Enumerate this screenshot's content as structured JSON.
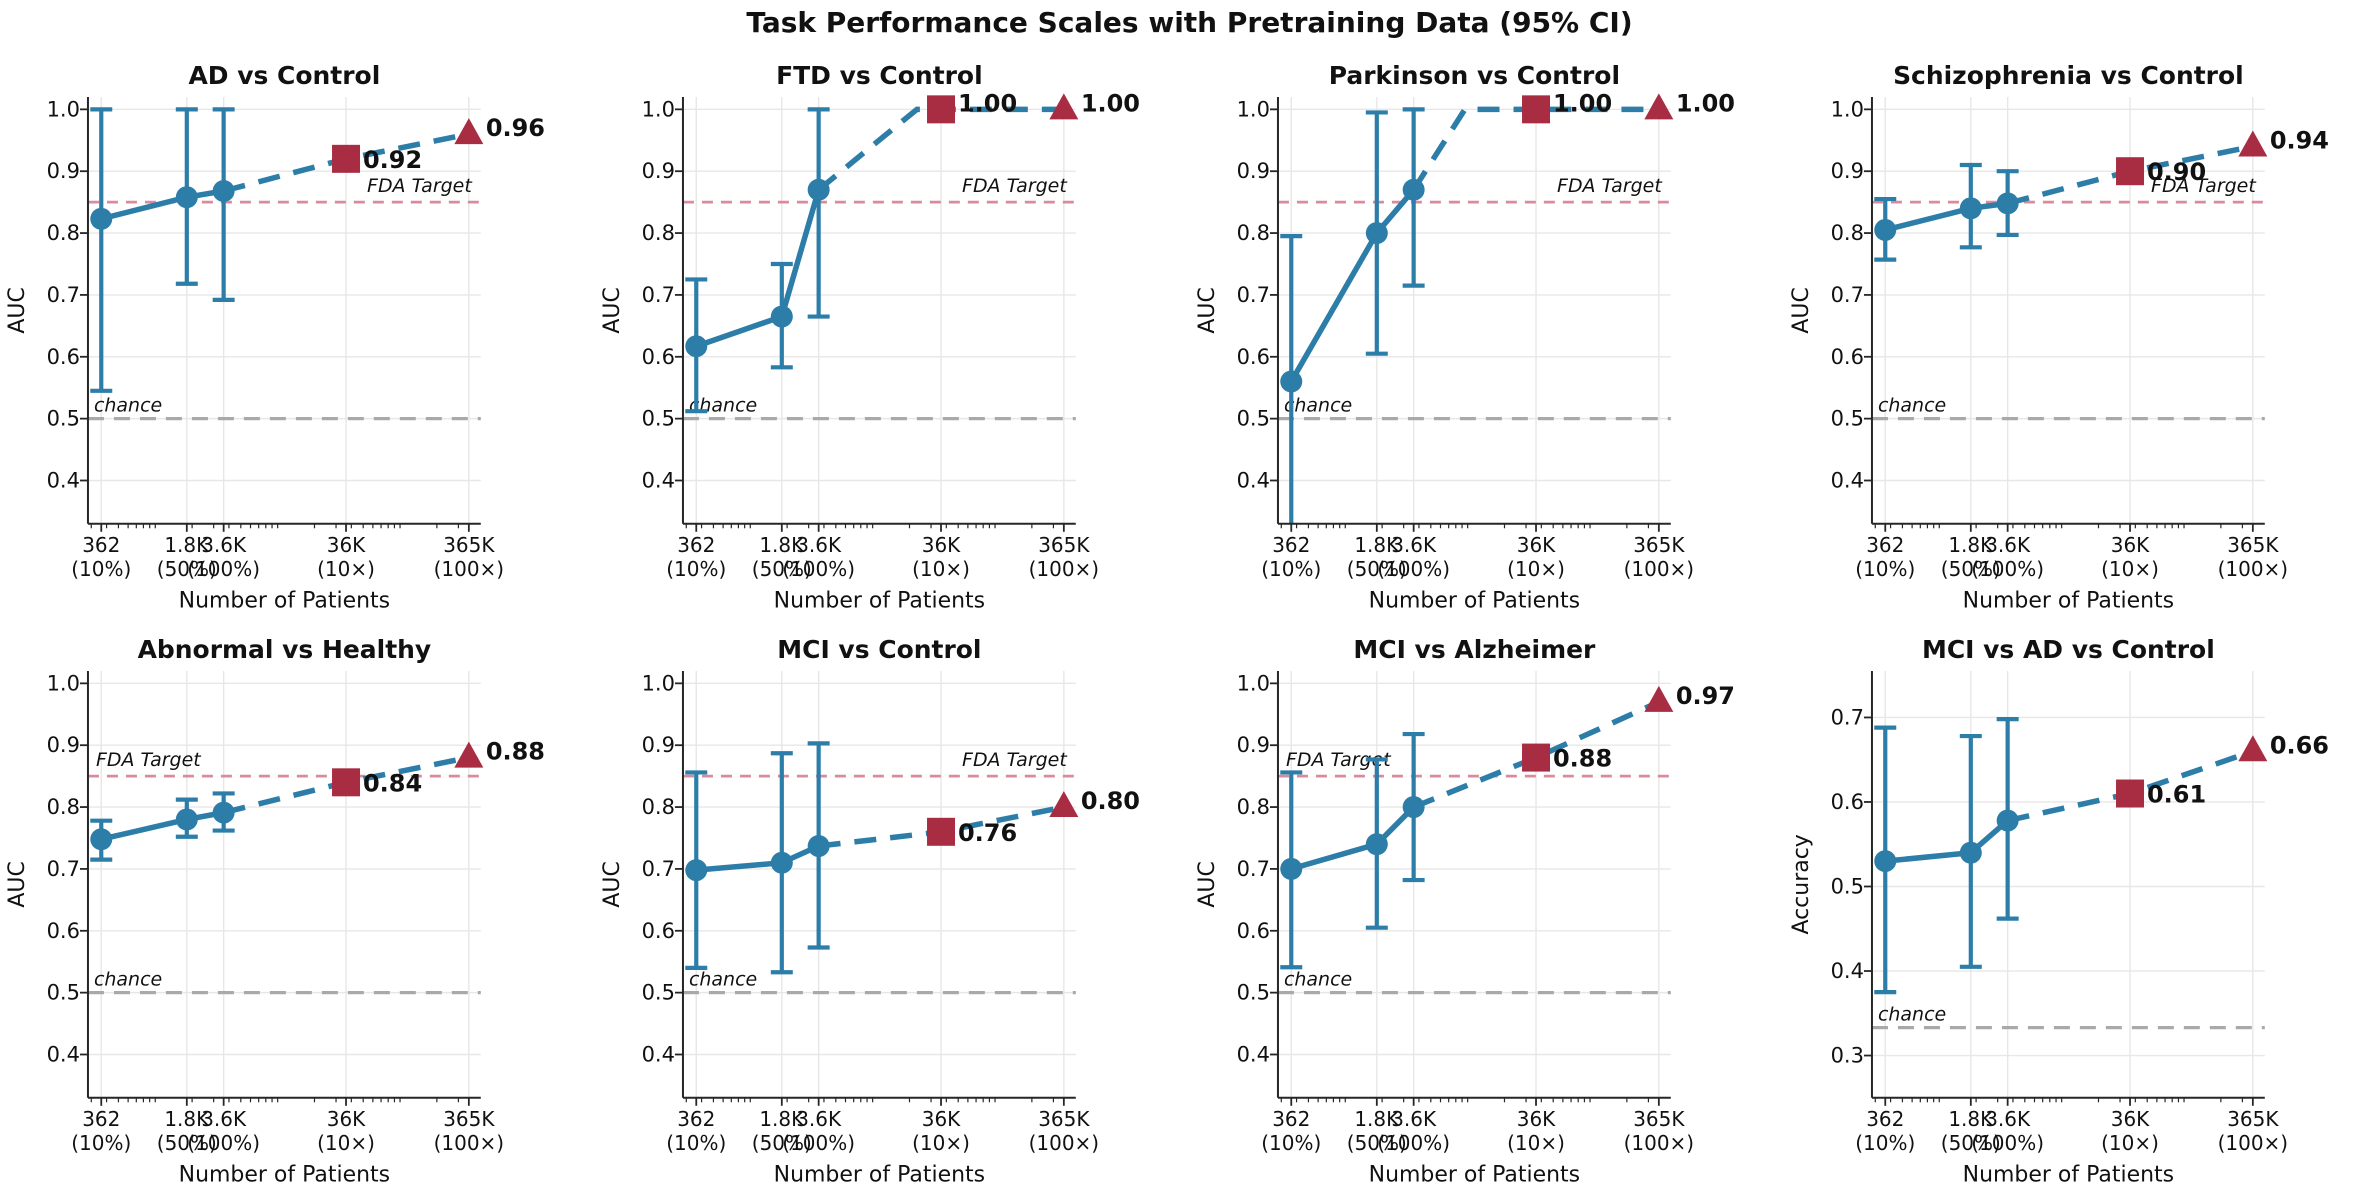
{
  "chart_data": {
    "type": "line",
    "suptitle": "Task Performance Scales with Pretraining Data (95% CI)",
    "xlabel": "Number of Patients",
    "x_scale": "log",
    "x_values": [
      362,
      1810,
      3620,
      36200,
      365000
    ],
    "x_tick_labels": [
      [
        "362",
        "(10%)"
      ],
      [
        "1.8K",
        "(50%)"
      ],
      [
        "3.6K",
        "(100%)"
      ],
      [
        "36K",
        "(10×)"
      ],
      [
        "365K",
        "(100×)"
      ]
    ],
    "x_log_domain": [
      2.45,
      5.66
    ],
    "fda_target": {
      "value": 0.85,
      "label": "FDA Target"
    },
    "chance_label": "chance",
    "legend_position": "none",
    "grid": true,
    "colors": {
      "measured_blue": "#2d7da9",
      "extrapolated_red": "#a82c42",
      "fda_line_pink": "#d98b9b",
      "chance_gray": "#a9a9a9",
      "chance_text_gray": "#8a8a8a",
      "gridline": "#e7e7e7",
      "spine": "#262626",
      "text": "#111111"
    },
    "subplots": [
      {
        "slug": "ad-vs-control",
        "title": "AD vs Control",
        "ylabel": "AUC",
        "ylim": [
          0.33,
          1.02
        ],
        "yticks": [
          0.4,
          0.5,
          0.6,
          0.7,
          0.8,
          0.9,
          1.0
        ],
        "chance": 0.5,
        "fda_side": "right",
        "saturate_at": null,
        "measured": {
          "x": [
            362,
            1810,
            3620
          ],
          "y": [
            0.823,
            0.858,
            0.868
          ],
          "ci_low": [
            0.545,
            0.718,
            0.692
          ],
          "ci_high": [
            1.0,
            1.0,
            1.0
          ]
        },
        "extrapolated": {
          "x": [
            36200,
            365000
          ],
          "y": [
            0.92,
            0.96
          ],
          "labels": [
            "0.92",
            "0.96"
          ]
        }
      },
      {
        "slug": "ftd-vs-control",
        "title": "FTD vs Control",
        "ylabel": "AUC",
        "ylim": [
          0.33,
          1.02
        ],
        "yticks": [
          0.4,
          0.5,
          0.6,
          0.7,
          0.8,
          0.9,
          1.0
        ],
        "chance": 0.5,
        "fda_side": "right",
        "saturate_at": 23000,
        "measured": {
          "x": [
            362,
            1810,
            3620
          ],
          "y": [
            0.617,
            0.665,
            0.87
          ],
          "ci_low": [
            0.512,
            0.583,
            0.665
          ],
          "ci_high": [
            0.725,
            0.75,
            1.0
          ]
        },
        "extrapolated": {
          "x": [
            36200,
            365000
          ],
          "y": [
            1.0,
            1.0
          ],
          "labels": [
            "1.00",
            "1.00"
          ]
        }
      },
      {
        "slug": "parkinson-vs-control",
        "title": "Parkinson vs Control",
        "ylabel": "AUC",
        "ylim": [
          0.33,
          1.02
        ],
        "yticks": [
          0.4,
          0.5,
          0.6,
          0.7,
          0.8,
          0.9,
          1.0
        ],
        "chance": 0.5,
        "fda_side": "right",
        "saturate_at": 9500,
        "measured": {
          "x": [
            362,
            1810,
            3620
          ],
          "y": [
            0.56,
            0.8,
            0.87
          ],
          "ci_low": [
            0.28,
            0.605,
            0.715
          ],
          "ci_high": [
            0.795,
            0.995,
            1.0
          ]
        },
        "extrapolated": {
          "x": [
            36200,
            365000
          ],
          "y": [
            1.0,
            1.0
          ],
          "labels": [
            "1.00",
            "1.00"
          ]
        }
      },
      {
        "slug": "schizophrenia-vs-control",
        "title": "Schizophrenia vs Control",
        "ylabel": "AUC",
        "ylim": [
          0.33,
          1.02
        ],
        "yticks": [
          0.4,
          0.5,
          0.6,
          0.7,
          0.8,
          0.9,
          1.0
        ],
        "chance": 0.5,
        "fda_side": "right",
        "saturate_at": null,
        "measured": {
          "x": [
            362,
            1810,
            3620
          ],
          "y": [
            0.805,
            0.84,
            0.848
          ],
          "ci_low": [
            0.757,
            0.777,
            0.797
          ],
          "ci_high": [
            0.855,
            0.91,
            0.9
          ]
        },
        "extrapolated": {
          "x": [
            36200,
            365000
          ],
          "y": [
            0.9,
            0.94
          ],
          "labels": [
            "0.90",
            "0.94"
          ]
        }
      },
      {
        "slug": "abnormal-vs-healthy",
        "title": "Abnormal vs Healthy",
        "ylabel": "AUC",
        "ylim": [
          0.33,
          1.02
        ],
        "yticks": [
          0.4,
          0.5,
          0.6,
          0.7,
          0.8,
          0.9,
          1.0
        ],
        "chance": 0.5,
        "fda_side": "left",
        "saturate_at": null,
        "measured": {
          "x": [
            362,
            1810,
            3620
          ],
          "y": [
            0.748,
            0.78,
            0.791
          ],
          "ci_low": [
            0.715,
            0.752,
            0.762
          ],
          "ci_high": [
            0.778,
            0.812,
            0.822
          ]
        },
        "extrapolated": {
          "x": [
            36200,
            365000
          ],
          "y": [
            0.84,
            0.88
          ],
          "labels": [
            "0.84",
            "0.88"
          ]
        }
      },
      {
        "slug": "mci-vs-control",
        "title": "MCI vs Control",
        "ylabel": "AUC",
        "ylim": [
          0.33,
          1.02
        ],
        "yticks": [
          0.4,
          0.5,
          0.6,
          0.7,
          0.8,
          0.9,
          1.0
        ],
        "chance": 0.5,
        "fda_side": "right",
        "saturate_at": null,
        "measured": {
          "x": [
            362,
            1810,
            3620
          ],
          "y": [
            0.698,
            0.71,
            0.737
          ],
          "ci_low": [
            0.54,
            0.533,
            0.573
          ],
          "ci_high": [
            0.856,
            0.887,
            0.903
          ]
        },
        "extrapolated": {
          "x": [
            36200,
            365000
          ],
          "y": [
            0.76,
            0.8
          ],
          "labels": [
            "0.76",
            "0.80"
          ]
        }
      },
      {
        "slug": "mci-vs-alzheimer",
        "title": "MCI vs Alzheimer",
        "ylabel": "AUC",
        "ylim": [
          0.33,
          1.02
        ],
        "yticks": [
          0.4,
          0.5,
          0.6,
          0.7,
          0.8,
          0.9,
          1.0
        ],
        "chance": 0.5,
        "fda_side": "left",
        "saturate_at": null,
        "measured": {
          "x": [
            362,
            1810,
            3620
          ],
          "y": [
            0.7,
            0.74,
            0.8
          ],
          "ci_low": [
            0.541,
            0.605,
            0.682
          ],
          "ci_high": [
            0.856,
            0.877,
            0.918
          ]
        },
        "extrapolated": {
          "x": [
            36200,
            365000
          ],
          "y": [
            0.88,
            0.97
          ],
          "labels": [
            "0.88",
            "0.97"
          ]
        }
      },
      {
        "slug": "mci-vs-ad-vs-control",
        "title": "MCI vs AD vs Control",
        "ylabel": "Accuracy",
        "ylim": [
          0.25,
          0.755
        ],
        "yticks": [
          0.3,
          0.4,
          0.5,
          0.6,
          0.7
        ],
        "chance": 0.333,
        "fda_side": null,
        "saturate_at": null,
        "measured": {
          "x": [
            362,
            1810,
            3620
          ],
          "y": [
            0.53,
            0.54,
            0.578
          ],
          "ci_low": [
            0.375,
            0.405,
            0.462
          ],
          "ci_high": [
            0.688,
            0.678,
            0.698
          ]
        },
        "extrapolated": {
          "x": [
            36200,
            365000
          ],
          "y": [
            0.61,
            0.66
          ],
          "labels": [
            "0.61",
            "0.66"
          ]
        }
      }
    ]
  }
}
